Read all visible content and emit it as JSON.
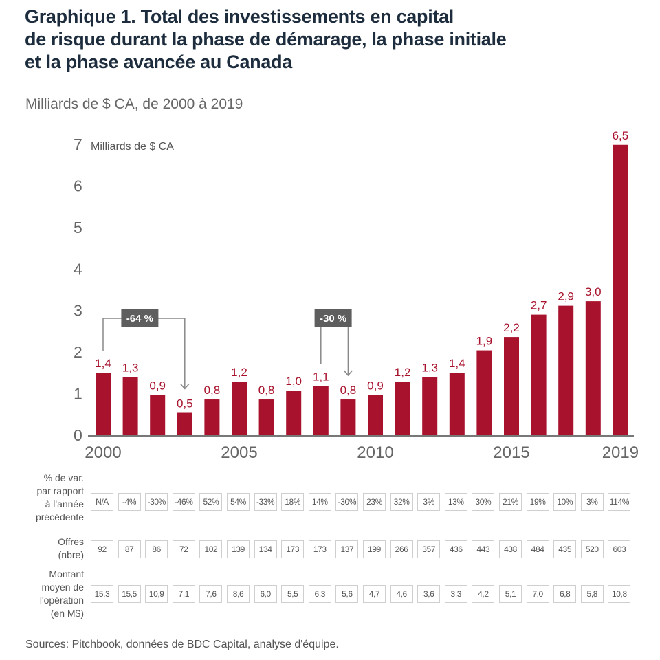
{
  "title": "Graphique 1. Total des investissements en capital de risque durant la phase de démarage, la phase initiale et la phase avancée au Canada",
  "title_lines": [
    "Graphique 1. Total des investissements en capital",
    "de risque durant la phase de démarage, la phase initiale",
    "et la phase avancée au Canada"
  ],
  "subtitle": "Milliards de $ CA, de 2000 à 2019",
  "colors": {
    "bar": "#a8122c",
    "annotation_box": "#5e5e5e",
    "axis": "#777777",
    "title": "#1d2d3e"
  },
  "chart_data": {
    "type": "bar",
    "title": "Total des investissements en capital de risque durant la phase de démarage, la phase initiale et la phase avancée au Canada",
    "ylabel": "Milliards de $ CA",
    "xlabel": "",
    "ylim": [
      0,
      7
    ],
    "yticks": [
      "0",
      "1",
      "2",
      "3",
      "4",
      "5",
      "6",
      "7"
    ],
    "xtick_labels": [
      {
        "year": 2000,
        "label": "2000"
      },
      {
        "year": 2005,
        "label": "2005"
      },
      {
        "year": 2010,
        "label": "2010"
      },
      {
        "year": 2015,
        "label": "2015"
      },
      {
        "year": 2019,
        "label": "2019"
      }
    ],
    "grid": false,
    "categories": [
      2000,
      2001,
      2002,
      2003,
      2004,
      2005,
      2006,
      2007,
      2008,
      2009,
      2010,
      2011,
      2012,
      2013,
      2014,
      2015,
      2016,
      2017,
      2018,
      2019
    ],
    "values": [
      1.4,
      1.3,
      0.9,
      0.5,
      0.8,
      1.2,
      0.8,
      1.0,
      1.1,
      0.8,
      0.9,
      1.2,
      1.3,
      1.4,
      1.9,
      2.2,
      2.7,
      2.9,
      3.0,
      6.5
    ],
    "value_labels": [
      "1,4",
      "1,3",
      "0,9",
      "0,5",
      "0,8",
      "1,2",
      "0,8",
      "1,0",
      "1,1",
      "0,8",
      "0,9",
      "1,2",
      "1,3",
      "1,4",
      "1,9",
      "2,2",
      "2,7",
      "2,9",
      "3,0",
      "6,5"
    ],
    "annotations": [
      {
        "label": "-64 %",
        "from": 2000,
        "to": 2003
      },
      {
        "label": "-30 %",
        "from": 2008,
        "to": 2009
      }
    ]
  },
  "table": {
    "rows": [
      {
        "label_lines": [
          "% de var.",
          "par rapport",
          "à l'année",
          "précédente"
        ],
        "values": [
          "N/A",
          "-4%",
          "-30%",
          "-46%",
          "52%",
          "54%",
          "-33%",
          "18%",
          "14%",
          "-30%",
          "23%",
          "32%",
          "3%",
          "13%",
          "30%",
          "21%",
          "19%",
          "10%",
          "3%",
          "114%"
        ]
      },
      {
        "label_lines": [
          "Offres",
          "(nbre)"
        ],
        "values": [
          "92",
          "87",
          "86",
          "72",
          "102",
          "139",
          "134",
          "173",
          "173",
          "137",
          "199",
          "266",
          "357",
          "436",
          "443",
          "438",
          "484",
          "435",
          "520",
          "603"
        ]
      },
      {
        "label_lines": [
          "Montant",
          "moyen de",
          "l'opération",
          "(en M$)"
        ],
        "values": [
          "15,3",
          "15,5",
          "10,9",
          "7,1",
          "7,6",
          "8,6",
          "6,0",
          "5,5",
          "6,3",
          "5,6",
          "4,7",
          "4,6",
          "3,6",
          "3,3",
          "4,2",
          "5,1",
          "7,0",
          "6,8",
          "5,8",
          "10,8"
        ]
      }
    ]
  },
  "source": "Sources: Pitchbook, données de BDC Capital, analyse d'équipe."
}
